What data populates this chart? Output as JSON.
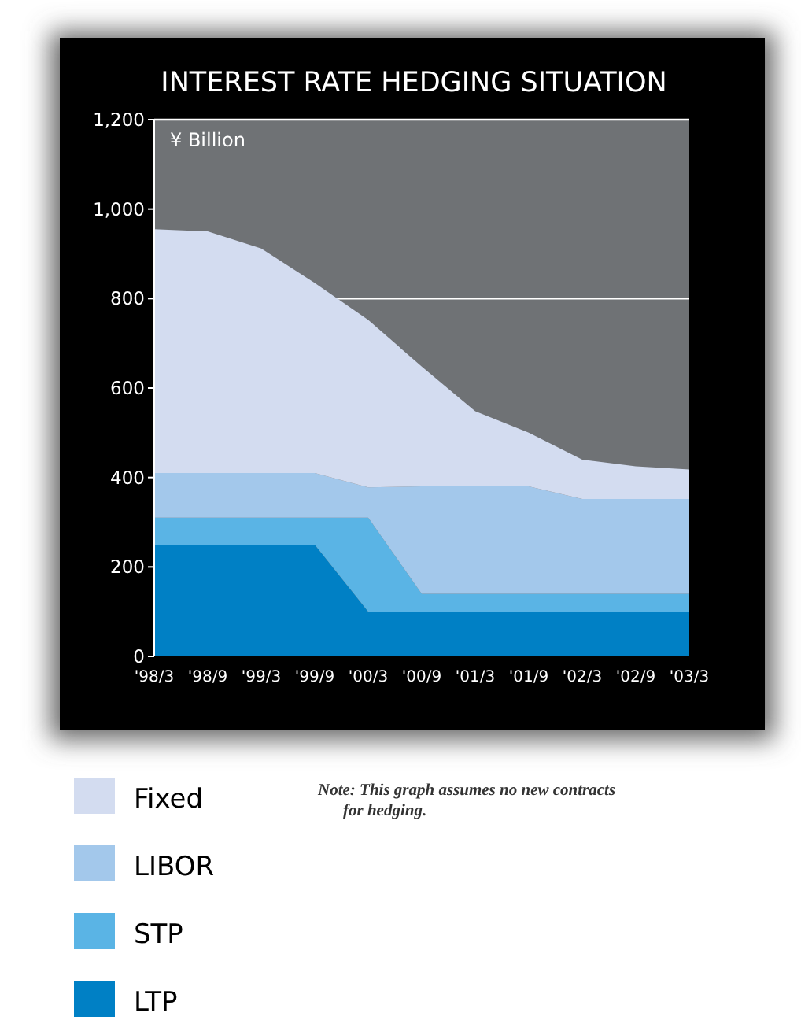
{
  "chart_data": {
    "type": "area",
    "stacked": true,
    "title": "INTEREST RATE HEDGING SITUATION",
    "ylabel": "¥ Billion",
    "categories": [
      "'98/3",
      "'98/9",
      "'99/3",
      "'99/9",
      "'00/3",
      "'00/9",
      "'01/3",
      "'01/9",
      "'02/3",
      "'02/9",
      "'03/3"
    ],
    "series": [
      {
        "name": "LTP",
        "color": "#0080c5",
        "values": [
          250,
          250,
          250,
          250,
          100,
          100,
          100,
          100,
          100,
          100,
          100
        ]
      },
      {
        "name": "STP",
        "color": "#5ab4e5",
        "values": [
          60,
          60,
          60,
          60,
          210,
          40,
          40,
          40,
          40,
          40,
          40
        ]
      },
      {
        "name": "LIBOR",
        "color": "#a3c8eb",
        "values": [
          100,
          100,
          100,
          100,
          68,
          240,
          240,
          240,
          212,
          212,
          212
        ]
      },
      {
        "name": "Fixed",
        "color": "#d3dcf0",
        "values": [
          545,
          540,
          502,
          425,
          374,
          268,
          168,
          120,
          88,
          73,
          66
        ]
      }
    ],
    "ylim": [
      0,
      1200
    ],
    "yticks": [
      0,
      {
        "value": 200,
        "label": "200"
      },
      {
        "value": 400,
        "label": "400"
      },
      {
        "value": 600,
        "label": "600"
      },
      {
        "value": 800,
        "label": "800"
      },
      {
        "value": 1000,
        "label": "1,000"
      },
      {
        "value": 1200,
        "label": "1,200"
      }
    ],
    "grid": false,
    "legend": "bottom left",
    "ref_lines": [
      {
        "axis": "y",
        "value": 800,
        "color": "#ffffff"
      }
    ],
    "annotations": [
      "Note: This graph assumes no new contracts for hedging."
    ]
  }
}
